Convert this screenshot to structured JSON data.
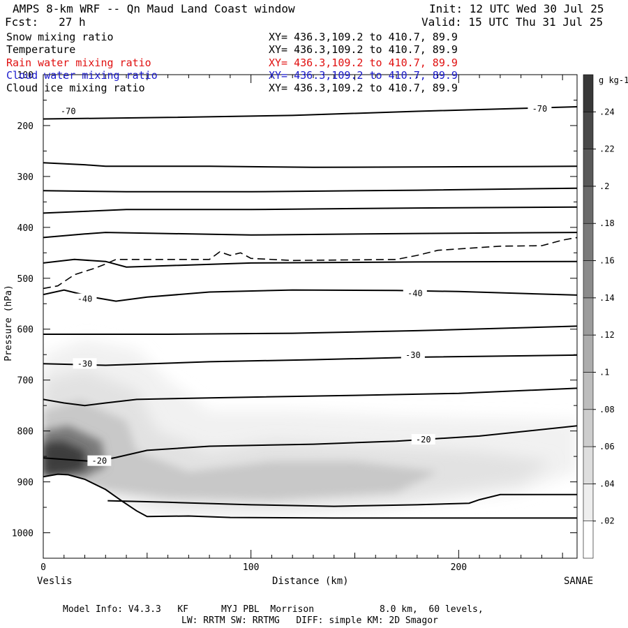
{
  "header": {
    "title": "AMPS 8-km WRF -- Qn Maud Land Coast window",
    "init": "Init: 12 UTC Wed 30 Jul 25",
    "fcst": "Fcst:   27 h",
    "valid": "Valid: 15 UTC Thu 31 Jul 25"
  },
  "fields": [
    {
      "name": "Snow mixing ratio",
      "xy": "XY= 436.3,109.2 to 410.7, 89.9",
      "color": "#000000"
    },
    {
      "name": "Temperature",
      "xy": "XY= 436.3,109.2 to 410.7, 89.9",
      "color": "#000000"
    },
    {
      "name": "Rain water mixing ratio",
      "xy": "XY= 436.3,109.2 to 410.7, 89.9",
      "color": "#e01010"
    },
    {
      "name": "Cloud water mixing ratio",
      "xy": "XY= 436.3,109.2 to 410.7, 89.9",
      "color": "#1a1acc"
    },
    {
      "name": "Cloud ice mixing ratio",
      "xy": "XY= 436.3,109.2 to 410.7, 89.9",
      "color": "#000000"
    }
  ],
  "footer": {
    "line1": "Model Info: V4.3.3   KF      MYJ PBL  Morrison            8.0 km,  60 levels,",
    "line2": "LW: RRTM SW: RRTMG   DIFF: simple KM: 2D Smagor"
  },
  "chart_data": {
    "type": "contour",
    "xlabel": "Distance (km)",
    "ylabel": "Pressure (hPa)",
    "x_endpoints": {
      "left": "Veslis",
      "right": "SANAE"
    },
    "xlim": [
      0,
      257
    ],
    "ylim": [
      1050,
      100
    ],
    "y_scale": "linear-descending",
    "xticks": [
      0,
      100,
      200
    ],
    "yticks": [
      100,
      200,
      300,
      400,
      500,
      600,
      700,
      800,
      900,
      1000
    ],
    "colorbar": {
      "units": "g kg-1",
      "levels": [
        0.02,
        0.04,
        0.06,
        0.08,
        0.1,
        0.12,
        0.14,
        0.16,
        0.18,
        0.2,
        0.22,
        0.24
      ],
      "tick_labels": [
        ".02",
        ".04",
        ".06",
        ".08",
        ".1",
        ".12",
        ".14",
        ".16",
        ".18",
        ".2",
        ".22",
        ".24"
      ]
    },
    "temperature_contours": [
      {
        "label": "-70",
        "points": [
          [
            0,
            187
          ],
          [
            60,
            184
          ],
          [
            120,
            180
          ],
          [
            180,
            172
          ],
          [
            257,
            163
          ]
        ]
      },
      {
        "label": "",
        "points": [
          [
            0,
            273
          ],
          [
            20,
            277
          ],
          [
            30,
            280
          ],
          [
            80,
            280
          ],
          [
            130,
            282
          ],
          [
            200,
            281
          ],
          [
            257,
            280
          ]
        ]
      },
      {
        "label": "",
        "points": [
          [
            0,
            328
          ],
          [
            40,
            330
          ],
          [
            100,
            330
          ],
          [
            180,
            327
          ],
          [
            257,
            323
          ]
        ]
      },
      {
        "label": "",
        "points": [
          [
            0,
            372
          ],
          [
            40,
            365
          ],
          [
            100,
            365
          ],
          [
            180,
            362
          ],
          [
            257,
            360
          ]
        ]
      },
      {
        "label": "",
        "points": [
          [
            0,
            420
          ],
          [
            20,
            413
          ],
          [
            30,
            410
          ],
          [
            100,
            415
          ],
          [
            180,
            412
          ],
          [
            257,
            410
          ]
        ]
      },
      {
        "label": "",
        "points": [
          [
            0,
            470
          ],
          [
            15,
            463
          ],
          [
            30,
            467
          ],
          [
            40,
            478
          ],
          [
            100,
            470
          ],
          [
            180,
            468
          ],
          [
            257,
            467
          ]
        ]
      },
      {
        "label": "-40",
        "points": [
          [
            0,
            532
          ],
          [
            10,
            523
          ],
          [
            25,
            538
          ],
          [
            35,
            545
          ],
          [
            50,
            537
          ],
          [
            80,
            527
          ],
          [
            120,
            523
          ],
          [
            170,
            524
          ],
          [
            200,
            526
          ],
          [
            257,
            533
          ]
        ]
      },
      {
        "label": "",
        "points": [
          [
            0,
            610
          ],
          [
            60,
            610
          ],
          [
            120,
            608
          ],
          [
            180,
            603
          ],
          [
            257,
            594
          ]
        ]
      },
      {
        "label": "-30",
        "points": [
          [
            0,
            668
          ],
          [
            30,
            671
          ],
          [
            80,
            664
          ],
          [
            130,
            660
          ],
          [
            180,
            655
          ],
          [
            257,
            651
          ]
        ]
      },
      {
        "label": "",
        "points": [
          [
            0,
            738
          ],
          [
            10,
            745
          ],
          [
            20,
            750
          ],
          [
            30,
            745
          ],
          [
            45,
            738
          ],
          [
            80,
            735
          ],
          [
            150,
            730
          ],
          [
            200,
            726
          ],
          [
            257,
            716
          ]
        ]
      },
      {
        "label": "-20",
        "points": [
          [
            0,
            853
          ],
          [
            25,
            860
          ],
          [
            35,
            852
          ],
          [
            50,
            838
          ],
          [
            80,
            830
          ],
          [
            130,
            826
          ],
          [
            170,
            820
          ],
          [
            210,
            810
          ],
          [
            257,
            790
          ]
        ]
      },
      {
        "label": "",
        "points": [
          [
            31,
            937
          ],
          [
            60,
            940
          ],
          [
            100,
            945
          ],
          [
            140,
            948
          ],
          [
            180,
            945
          ],
          [
            205,
            942
          ],
          [
            210,
            935
          ],
          [
            220,
            925
          ],
          [
            257,
            925
          ]
        ]
      }
    ],
    "terrain_surface": [
      [
        0,
        890
      ],
      [
        7,
        885
      ],
      [
        12,
        886
      ],
      [
        20,
        895
      ],
      [
        30,
        915
      ],
      [
        38,
        938
      ],
      [
        45,
        957
      ],
      [
        50,
        968
      ],
      [
        70,
        967
      ],
      [
        90,
        970
      ],
      [
        140,
        971
      ],
      [
        200,
        971
      ],
      [
        257,
        971
      ]
    ],
    "dashed_contour": [
      [
        0,
        520
      ],
      [
        7,
        515
      ],
      [
        15,
        493
      ],
      [
        25,
        480
      ],
      [
        30,
        472
      ],
      [
        35,
        463
      ],
      [
        80,
        463
      ],
      [
        85,
        448
      ],
      [
        90,
        455
      ],
      [
        95,
        450
      ],
      [
        100,
        461
      ],
      [
        120,
        465
      ],
      [
        170,
        463
      ],
      [
        180,
        455
      ],
      [
        190,
        445
      ],
      [
        220,
        437
      ],
      [
        240,
        436
      ],
      [
        250,
        425
      ],
      [
        257,
        420
      ]
    ],
    "snow_max": {
      "x": 12,
      "p": 855,
      "value": 0.25
    }
  }
}
